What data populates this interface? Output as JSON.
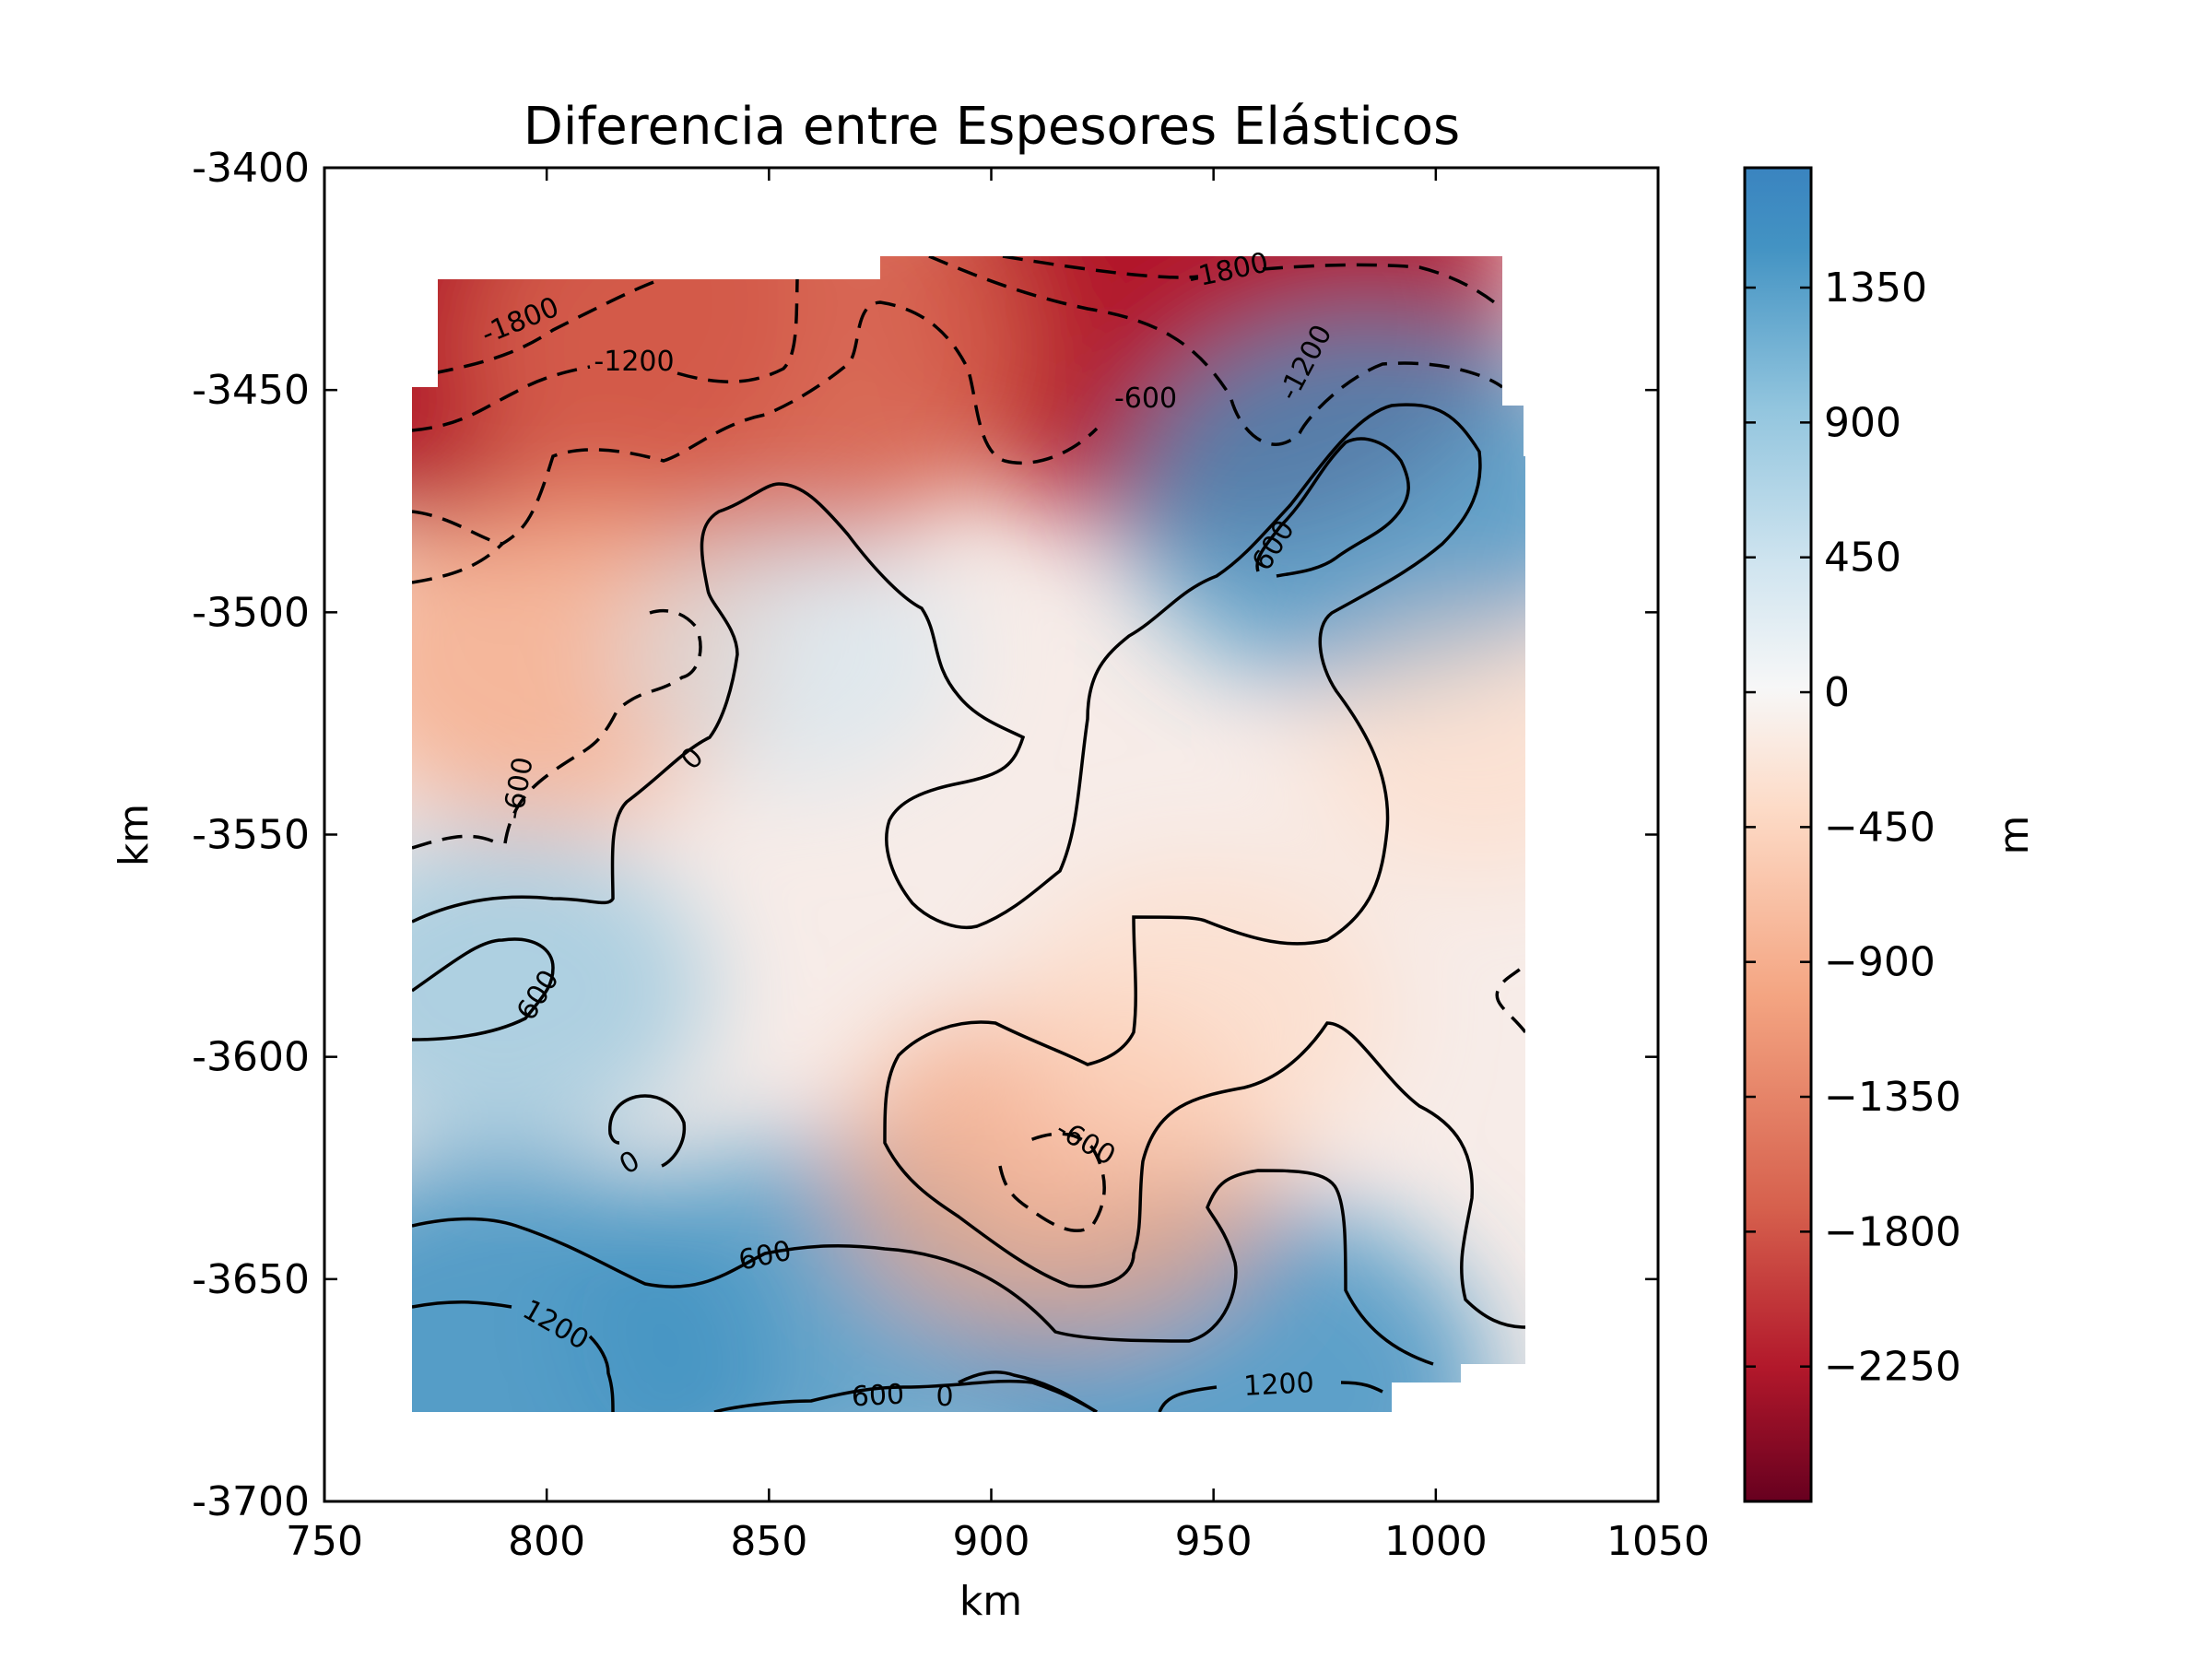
{
  "chart_data": {
    "type": "heatmap",
    "title": "Diferencia entre Espesores Elásticos",
    "xlabel": "km",
    "ylabel": "km",
    "xlim": [
      750,
      1050
    ],
    "ylim": [
      -3700,
      -3400
    ],
    "x_ticks": [
      750,
      800,
      850,
      900,
      950,
      1000,
      1050
    ],
    "y_ticks": [
      -3400,
      -3450,
      -3500,
      -3550,
      -3600,
      -3650,
      -3700
    ],
    "colorbar": {
      "label": "m",
      "range": [
        -2700,
        1750
      ],
      "ticks": [
        1350,
        900,
        450,
        0,
        -450,
        -900,
        -1350,
        -1800,
        -2250
      ],
      "tick_labels": [
        "1350",
        "900",
        "450",
        "0",
        "−450",
        "−900",
        "−1350",
        "−1800",
        "−2250"
      ],
      "colormap": "RdBu",
      "colors": [
        "#67001f",
        "#b2182b",
        "#d6604d",
        "#f4a582",
        "#fddbc7",
        "#f7f7f7",
        "#d1e5f0",
        "#92c5de",
        "#4393c3",
        "#2166ac"
      ]
    },
    "data_extent": {
      "x": [
        770,
        1020
      ],
      "y": [
        -3680,
        -3420
      ]
    },
    "field_features": [
      {
        "x": 790,
        "y": -3430,
        "value": -2400
      },
      {
        "x": 950,
        "y": -3430,
        "value": -2000
      },
      {
        "x": 845,
        "y": -3440,
        "value": -1500
      },
      {
        "x": 800,
        "y": -3510,
        "value": -800
      },
      {
        "x": 985,
        "y": -3475,
        "value": 1100
      },
      {
        "x": 790,
        "y": -3585,
        "value": 700
      },
      {
        "x": 790,
        "y": -3670,
        "value": 1400
      },
      {
        "x": 860,
        "y": -3660,
        "value": 1000
      },
      {
        "x": 955,
        "y": -3675,
        "value": 1200
      },
      {
        "x": 915,
        "y": -3625,
        "value": -800
      },
      {
        "x": 947,
        "y": -3590,
        "value": -500
      },
      {
        "x": 855,
        "y": -3510,
        "value": 300
      },
      {
        "x": 1010,
        "y": -3530,
        "value": -300
      }
    ],
    "contours": [
      {
        "level": -1800,
        "style": "dashed",
        "labels": [
          "-1800",
          "-1800"
        ]
      },
      {
        "level": -1200,
        "style": "dashed",
        "labels": [
          "-1200",
          "-1200"
        ]
      },
      {
        "level": -600,
        "style": "dashed",
        "labels": [
          "-600",
          "-600",
          "-600"
        ]
      },
      {
        "level": 0,
        "style": "solid",
        "labels": [
          "0",
          "0",
          "0"
        ]
      },
      {
        "level": 600,
        "style": "solid",
        "labels": [
          "600",
          "600",
          "600",
          "600"
        ]
      },
      {
        "level": 1200,
        "style": "solid",
        "labels": [
          "1200",
          "1200"
        ]
      }
    ]
  }
}
